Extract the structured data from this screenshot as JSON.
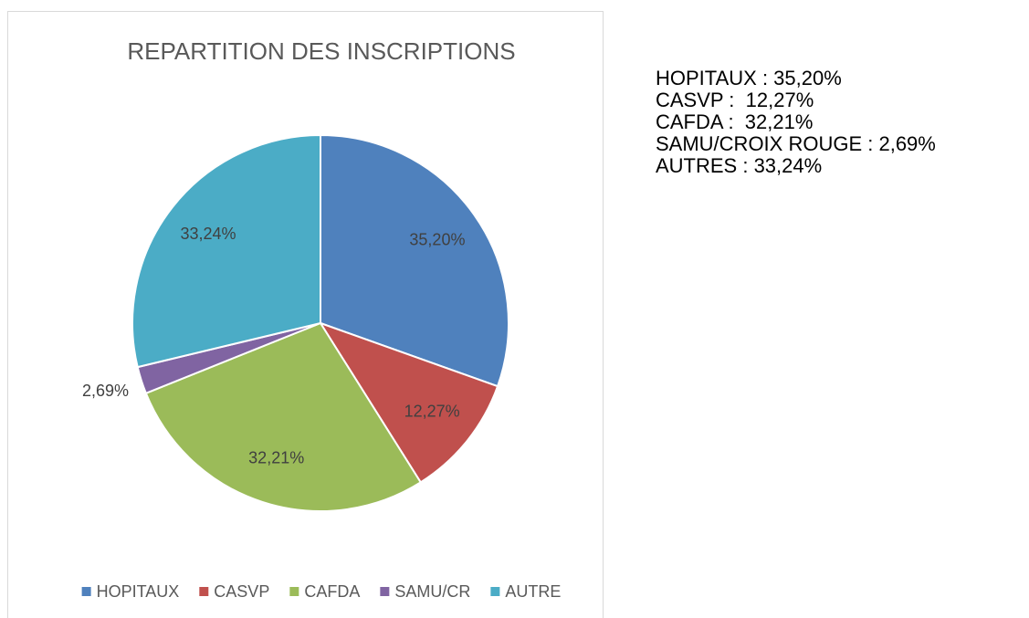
{
  "chart_data": {
    "type": "pie",
    "title": "REPARTITION DES INSCRIPTIONS",
    "categories": [
      "HOPITAUX",
      "CASVP",
      "CAFDA",
      "SAMU/CR",
      "AUTRE"
    ],
    "values": [
      35.2,
      12.27,
      32.21,
      2.69,
      33.24
    ],
    "value_labels": [
      "35,20%",
      "12,27%",
      "32,21%",
      "2,69%",
      "33,24%"
    ],
    "colors": [
      "#4f81bd",
      "#c0504d",
      "#9bbb59",
      "#8064a2",
      "#4bacc6"
    ],
    "legend": "bottom",
    "annotations": [
      "HOPITAUX : 35,20%",
      "CASVP :  12,27%",
      "CAFDA :  32,21%",
      "SAMU/CROIX ROUGE : 2,69%",
      "AUTRES : 33,24%"
    ]
  }
}
